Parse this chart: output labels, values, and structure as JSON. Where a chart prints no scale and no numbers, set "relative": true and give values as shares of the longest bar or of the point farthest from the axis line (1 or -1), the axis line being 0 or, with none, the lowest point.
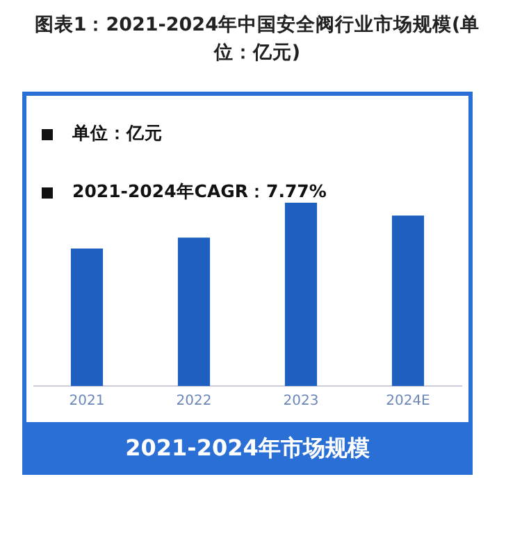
{
  "chart_data": {
    "type": "bar",
    "title": "图表1：2021-2024年中国安全阀行业市场规模(单位：亿元)",
    "categories": [
      "2021",
      "2022",
      "2023",
      "2024E"
    ],
    "values": [
      0.75,
      0.81,
      1,
      0.93
    ],
    "color": "#1f5fbf",
    "relative": true,
    "legend": false,
    "xlabel": "2021-2024年市场规模",
    "annotations": [
      "单位：亿元",
      "2021-2024年CAGR：7.77%"
    ]
  }
}
